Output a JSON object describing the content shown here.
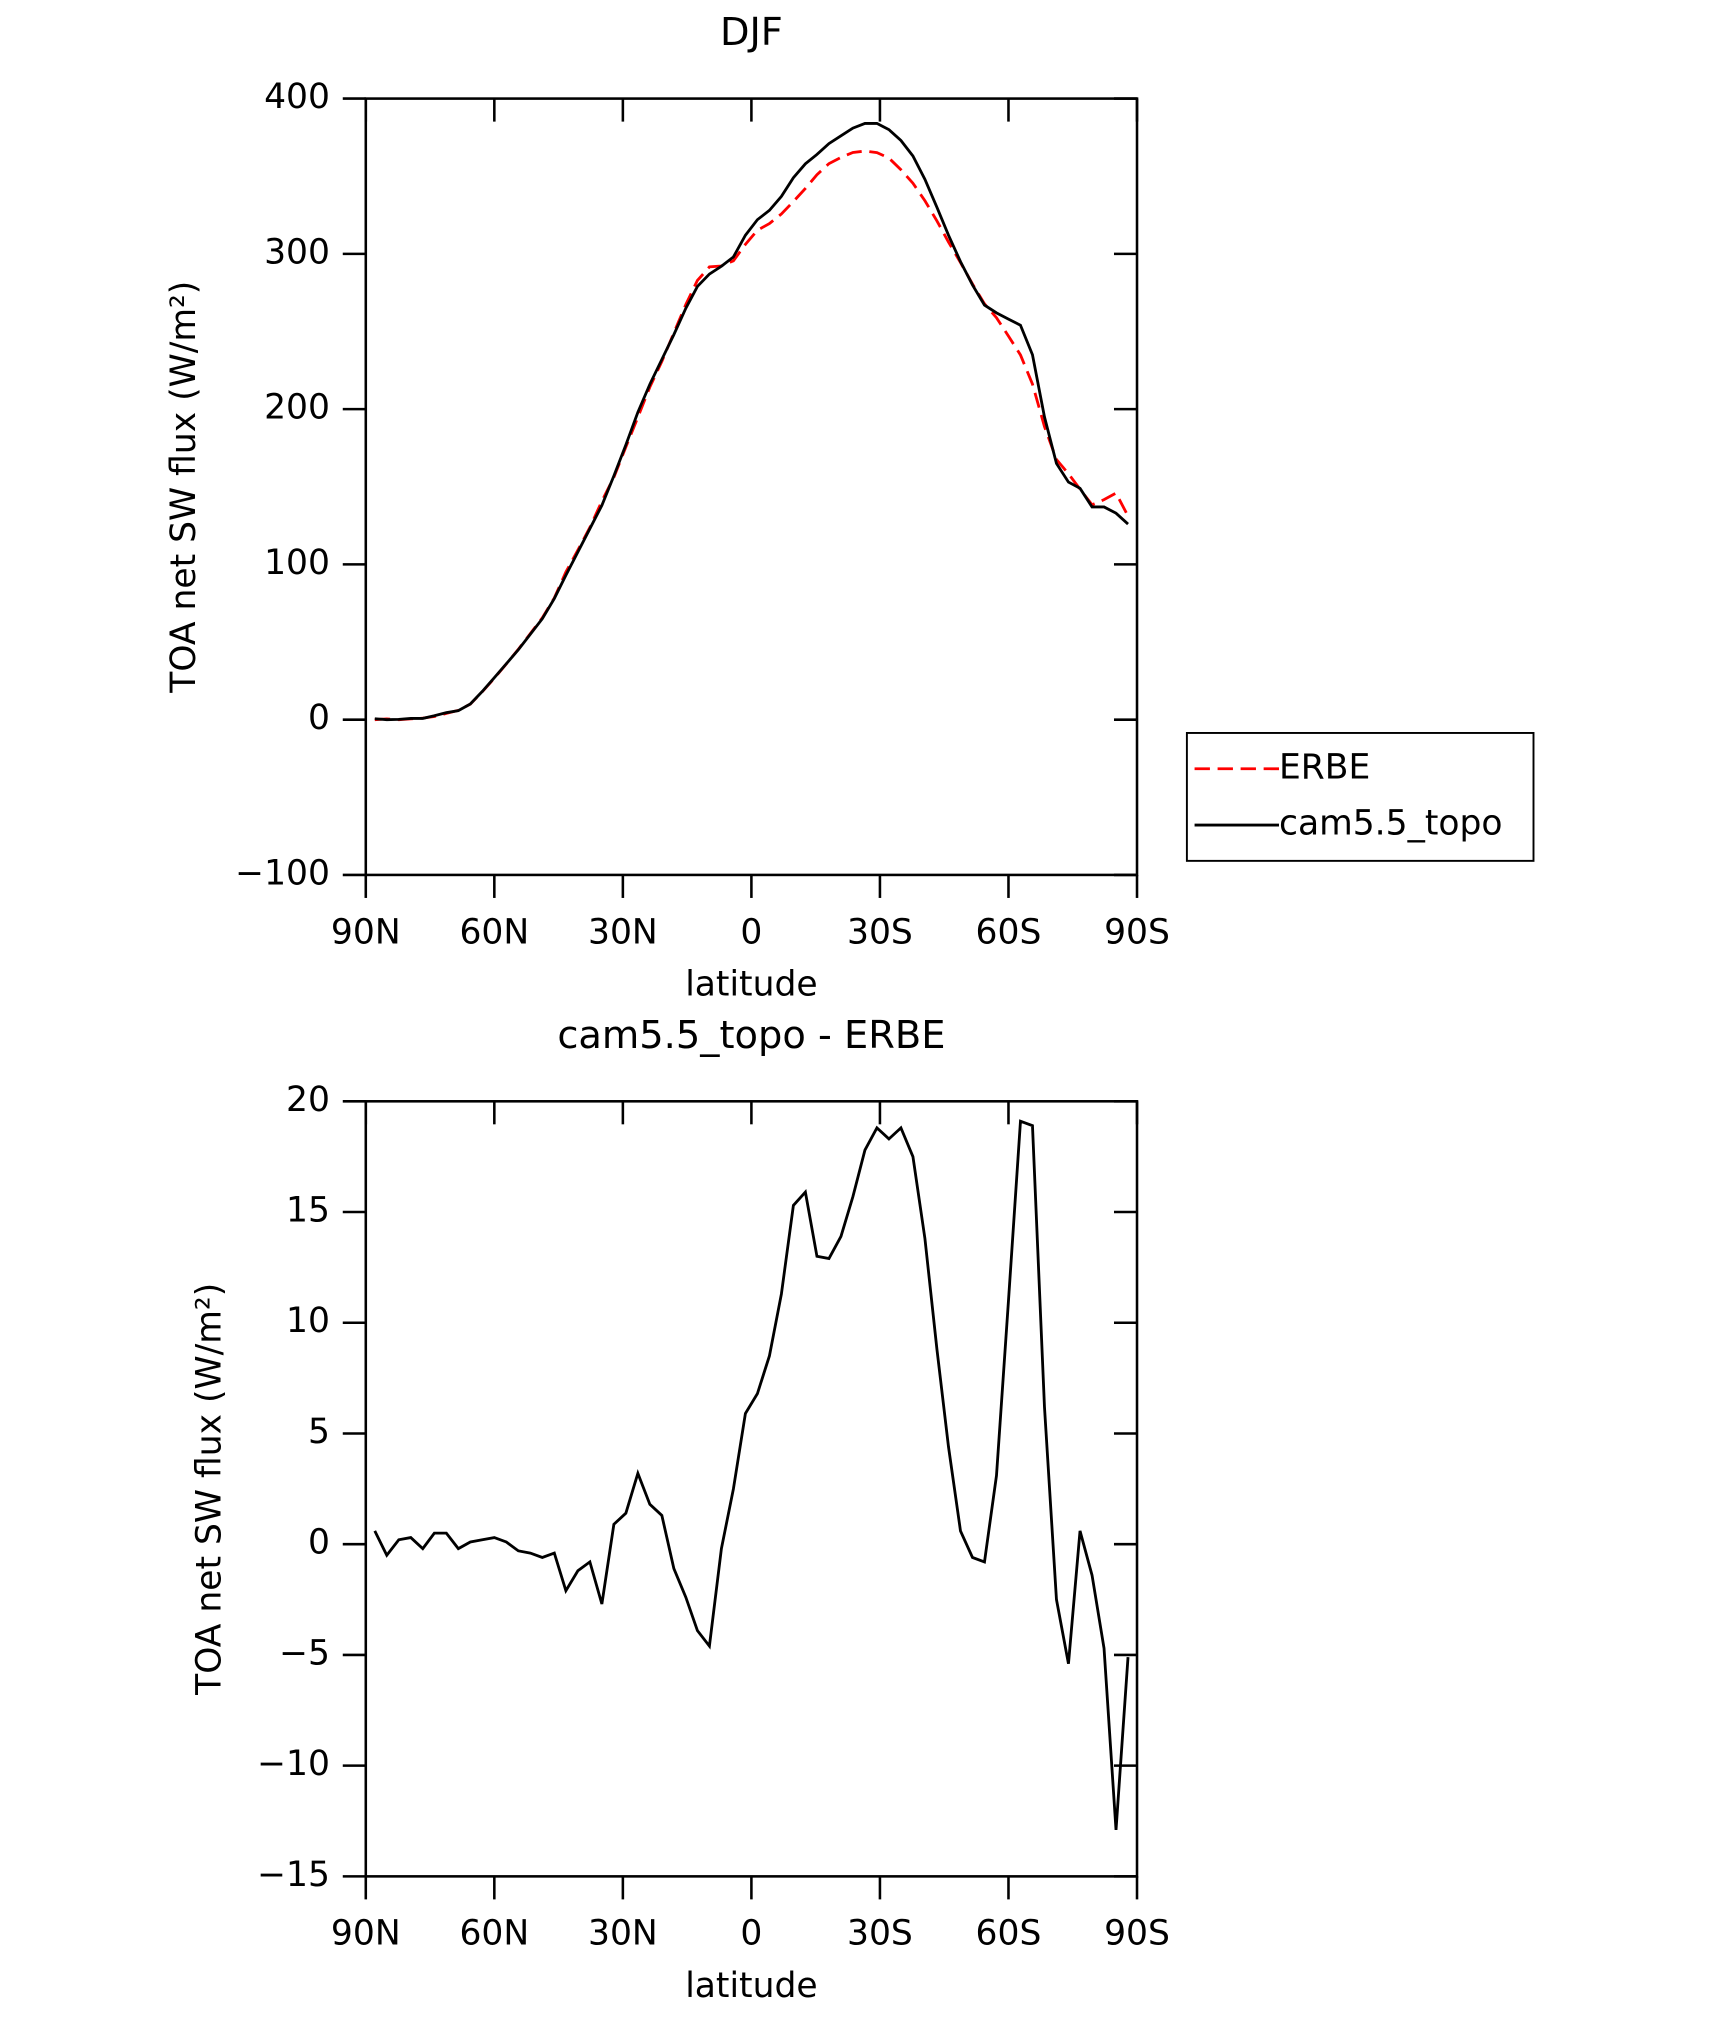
{
  "chart_data": [
    {
      "type": "line",
      "title": "DJF",
      "xlabel": "latitude",
      "ylabel": "TOA net SW flux (W/m²)",
      "x": [
        87.9,
        85.1,
        82.3,
        79.5,
        76.7,
        74.0,
        71.2,
        68.4,
        65.6,
        62.8,
        60.0,
        57.2,
        54.4,
        51.6,
        48.8,
        46.0,
        43.3,
        40.5,
        37.7,
        34.9,
        32.1,
        29.3,
        26.5,
        23.7,
        20.9,
        18.1,
        15.3,
        12.6,
        9.8,
        7.0,
        4.2,
        1.4,
        -1.4,
        -4.2,
        -7.0,
        -9.8,
        -12.6,
        -15.3,
        -18.1,
        -20.9,
        -23.7,
        -26.5,
        -29.3,
        -32.1,
        -34.9,
        -37.7,
        -40.5,
        -43.3,
        -46.0,
        -48.8,
        -51.6,
        -54.4,
        -57.2,
        -60.0,
        -62.8,
        -65.6,
        -68.4,
        -71.2,
        -74.0,
        -76.7,
        -79.5,
        -82.3,
        -85.1,
        -87.9
      ],
      "series": [
        {
          "name": "ERBE",
          "color": "#ff0000",
          "dashed": true,
          "values": [
            0,
            0.5,
            0,
            0.5,
            1.0,
            2.0,
            4.0,
            6.0,
            10.0,
            18.0,
            26.7,
            35.9,
            45.3,
            55.4,
            65.6,
            78.4,
            95.1,
            109.2,
            123.8,
            140.7,
            156.1,
            175.6,
            194.8,
            214.2,
            230.7,
            249.1,
            267.4,
            282.9,
            291.6,
            292.2,
            295.5,
            306.1,
            315.2,
            319.5,
            325.7,
            333.7,
            342.1,
            351.0,
            358.1,
            362.1,
            365.3,
            366.2,
            365.2,
            361.7,
            354.2,
            345.5,
            334.2,
            321.2,
            307.6,
            294.4,
            280.6,
            267.8,
            258.9,
            247.0,
            234.9,
            216.1,
            188.8,
            167.5,
            158.4,
            148.4,
            138.4,
            141.7,
            145.9,
            131.1
          ]
        },
        {
          "name": "cam5.5_topo",
          "color": "#000000",
          "dashed": false,
          "values": [
            0.6,
            0,
            0.2,
            0.8,
            0.8,
            2.5,
            4.5,
            5.8,
            10.1,
            18.2,
            27,
            36,
            45,
            55,
            65,
            78,
            93,
            108,
            123,
            138,
            157,
            177,
            198,
            216,
            232,
            248,
            265,
            279,
            287,
            292,
            298,
            312,
            322,
            328,
            337,
            349,
            358,
            364,
            371,
            376,
            381,
            384,
            384,
            380,
            373,
            363,
            348,
            330,
            312,
            295,
            280,
            267,
            262,
            258,
            254,
            235,
            195,
            165,
            153,
            149,
            137,
            137,
            133,
            126
          ]
        }
      ],
      "xlim": [
        90,
        -90
      ],
      "xticks": [
        {
          "value": 90,
          "label": "90N"
        },
        {
          "value": 60,
          "label": "60N"
        },
        {
          "value": 30,
          "label": "30N"
        },
        0,
        {
          "value": -30,
          "label": "30S"
        },
        {
          "value": -60,
          "label": "60S"
        },
        {
          "value": -90,
          "label": "90S"
        }
      ],
      "ylim": [
        -100,
        400
      ],
      "yticks": [
        {
          "value": -100,
          "label": "−100"
        },
        0,
        100,
        200,
        300,
        400
      ],
      "legend": "right"
    },
    {
      "type": "line",
      "title": "cam5.5_topo - ERBE",
      "xlabel": "latitude",
      "ylabel": "TOA net SW flux (W/m²)",
      "x": [
        87.9,
        85.1,
        82.3,
        79.5,
        76.7,
        74.0,
        71.2,
        68.4,
        65.6,
        62.8,
        60.0,
        57.2,
        54.4,
        51.6,
        48.8,
        46.0,
        43.3,
        40.5,
        37.7,
        34.9,
        32.1,
        29.3,
        26.5,
        23.7,
        20.9,
        18.1,
        15.3,
        12.6,
        9.8,
        7.0,
        4.2,
        1.4,
        -1.4,
        -4.2,
        -7.0,
        -9.8,
        -12.6,
        -15.3,
        -18.1,
        -20.9,
        -23.7,
        -26.5,
        -29.3,
        -32.1,
        -34.9,
        -37.7,
        -40.5,
        -43.3,
        -46.0,
        -48.8,
        -51.6,
        -54.4,
        -57.2,
        -60.0,
        -62.8,
        -65.6,
        -68.4,
        -71.2,
        -74.0,
        -76.7,
        -79.5,
        -82.3,
        -85.1,
        -87.9
      ],
      "series": [
        {
          "color": "#000000",
          "dashed": false,
          "values": [
            0.6,
            -0.5,
            0.2,
            0.3,
            -0.2,
            0.5,
            0.5,
            -0.2,
            0.1,
            0.2,
            0.3,
            0.1,
            -0.3,
            -0.4,
            -0.6,
            -0.4,
            -2.1,
            -1.2,
            -0.8,
            -2.7,
            0.9,
            1.4,
            3.2,
            1.8,
            1.3,
            -1.1,
            -2.4,
            -3.9,
            -4.6,
            -0.2,
            2.5,
            5.9,
            6.8,
            8.5,
            11.3,
            15.3,
            15.9,
            13.0,
            12.9,
            13.9,
            15.7,
            17.8,
            18.8,
            18.3,
            18.8,
            17.5,
            13.8,
            8.8,
            4.4,
            0.6,
            -0.6,
            -0.8,
            3.1,
            11.0,
            19.1,
            18.9,
            6.2,
            -2.5,
            -5.4,
            0.6,
            -1.4,
            -4.7,
            -12.9,
            -5.1
          ]
        }
      ],
      "xlim": [
        90,
        -90
      ],
      "xticks": [
        {
          "value": 90,
          "label": "90N"
        },
        {
          "value": 60,
          "label": "60N"
        },
        {
          "value": 30,
          "label": "30N"
        },
        0,
        {
          "value": -30,
          "label": "30S"
        },
        {
          "value": -60,
          "label": "60S"
        },
        {
          "value": -90,
          "label": "90S"
        }
      ],
      "ylim": [
        -15,
        20
      ],
      "yticks": [
        {
          "value": -15,
          "label": "−15"
        },
        {
          "value": -10,
          "label": "−10"
        },
        {
          "value": -5,
          "label": "−5"
        },
        0,
        5,
        10,
        15,
        20
      ]
    }
  ]
}
